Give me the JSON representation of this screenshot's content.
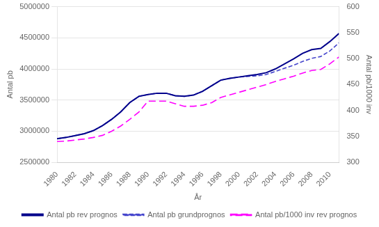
{
  "chart_data": {
    "type": "line",
    "xlabel": "År",
    "ylabel": "Antal pb",
    "y2label": "Antal pb/1000 inv",
    "x": [
      1980,
      1981,
      1982,
      1983,
      1984,
      1985,
      1986,
      1987,
      1988,
      1989,
      1990,
      1991,
      1992,
      1993,
      1994,
      1995,
      1996,
      1997,
      1998,
      1999,
      2000,
      2001,
      2002,
      2003,
      2004,
      2005,
      2006,
      2007,
      2008,
      2009,
      2010,
      2011
    ],
    "series": [
      {
        "name": "Antal pb rev prognos",
        "color": "#00008B",
        "line_style": "solid",
        "values": [
          2880000,
          2900000,
          2930000,
          2960000,
          3010000,
          3090000,
          3190000,
          3310000,
          3460000,
          3560000,
          3590000,
          3610000,
          3610000,
          3570000,
          3560000,
          3580000,
          3640000,
          3730000,
          3820000,
          3850000,
          3870000,
          3890000,
          3910000,
          3940000,
          4000000,
          4080000,
          4160000,
          4250000,
          4310000,
          4330000,
          4440000,
          4570000
        ]
      },
      {
        "name": "Antal pb grundprognos",
        "color": "#4444CC",
        "line_style": "dashed",
        "values": [
          2880000,
          2900000,
          2930000,
          2960000,
          3010000,
          3090000,
          3190000,
          3310000,
          3460000,
          3560000,
          3590000,
          3610000,
          3610000,
          3570000,
          3560000,
          3580000,
          3640000,
          3730000,
          3820000,
          3850000,
          3870000,
          3880000,
          3890000,
          3910000,
          3960000,
          4010000,
          4060000,
          4120000,
          4170000,
          4200000,
          4290000,
          4420000
        ]
      },
      {
        "name": "Antal pb/1000 inv rev prognos",
        "color": "#FF00FF",
        "line_style": "long dashed",
        "axis": "y2",
        "values": [
          340,
          341,
          343,
          345,
          348,
          352,
          360,
          370,
          383,
          397,
          418,
          418,
          418,
          413,
          408,
          408,
          410,
          415,
          425,
          430,
          435,
          440,
          445,
          450,
          456,
          461,
          466,
          472,
          477,
          479,
          490,
          503
        ]
      }
    ],
    "xlim": [
      1980,
      2011
    ],
    "xticks": [
      1980,
      1982,
      1984,
      1986,
      1988,
      1990,
      1992,
      1994,
      1996,
      1998,
      2000,
      2002,
      2004,
      2006,
      2008,
      2010
    ],
    "ylim": [
      2500000,
      5000000
    ],
    "yticks": [
      2500000,
      3000000,
      3500000,
      4000000,
      4500000,
      5000000
    ],
    "y2lim": [
      300,
      600
    ],
    "y2ticks": [
      300,
      350,
      400,
      450,
      500,
      550,
      600
    ],
    "grid": true,
    "legend": "bottom"
  }
}
